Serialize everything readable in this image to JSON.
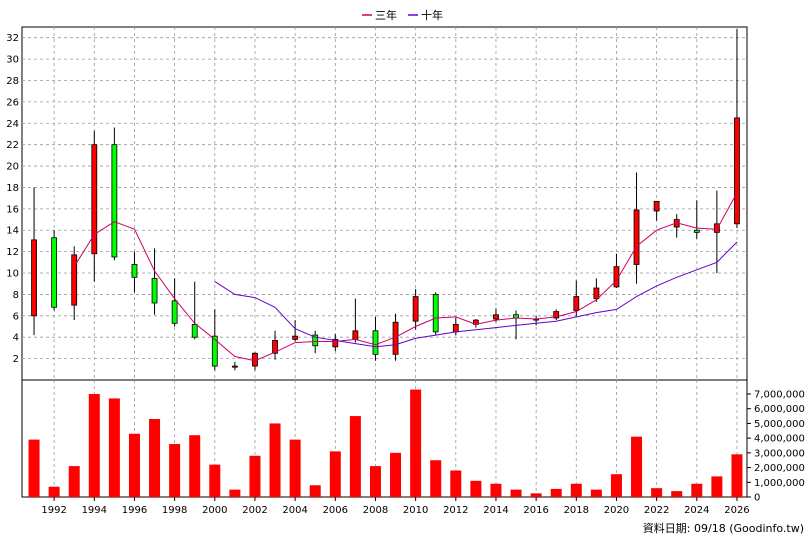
{
  "legend": [
    {
      "label": "三年",
      "color": "#cc0066"
    },
    {
      "label": "十年",
      "color": "#6600cc"
    }
  ],
  "footer": "資料日期: 09/18 (Goodinfo.tw)",
  "colors": {
    "up": "#ff0000",
    "down": "#00ff00",
    "volume": "#ff0000",
    "grid": "#999999"
  },
  "chart_data": [
    {
      "type": "candlestick",
      "ylim": [
        0,
        33
      ],
      "yticks": [
        2,
        4,
        6,
        8,
        10,
        12,
        14,
        16,
        18,
        20,
        22,
        24,
        26,
        28,
        30,
        32
      ],
      "xticks": [
        1992,
        1994,
        1996,
        1998,
        2000,
        2002,
        2004,
        2006,
        2008,
        2010,
        2012,
        2014,
        2016,
        2018,
        2020,
        2022,
        2024,
        2026
      ],
      "xlim": [
        1990.4,
        2026.5
      ],
      "candles": [
        {
          "year": 1991,
          "open": 6.0,
          "high": 18.0,
          "low": 4.2,
          "close": 13.1
        },
        {
          "year": 1992,
          "open": 13.3,
          "high": 14.0,
          "low": 6.5,
          "close": 6.8
        },
        {
          "year": 1993,
          "open": 7.0,
          "high": 12.5,
          "low": 5.6,
          "close": 11.7
        },
        {
          "year": 1994,
          "open": 11.8,
          "high": 23.3,
          "low": 9.2,
          "close": 22.0
        },
        {
          "year": 1995,
          "open": 22.0,
          "high": 23.6,
          "low": 11.2,
          "close": 11.5
        },
        {
          "year": 1996,
          "open": 10.8,
          "high": 12.0,
          "low": 8.2,
          "close": 9.6
        },
        {
          "year": 1997,
          "open": 9.5,
          "high": 12.3,
          "low": 6.1,
          "close": 7.2
        },
        {
          "year": 1998,
          "open": 7.4,
          "high": 9.5,
          "low": 5.0,
          "close": 5.3
        },
        {
          "year": 1999,
          "open": 5.2,
          "high": 9.2,
          "low": 3.8,
          "close": 4.0
        },
        {
          "year": 2000,
          "open": 4.1,
          "high": 6.6,
          "low": 0.9,
          "close": 1.3
        },
        {
          "year": 2001,
          "open": 1.2,
          "high": 1.7,
          "low": 0.9,
          "close": 1.3
        },
        {
          "year": 2002,
          "open": 1.3,
          "high": 2.6,
          "low": 0.9,
          "close": 2.5
        },
        {
          "year": 2003,
          "open": 2.5,
          "high": 4.6,
          "low": 1.9,
          "close": 3.7
        },
        {
          "year": 2004,
          "open": 3.8,
          "high": 5.6,
          "low": 3.6,
          "close": 4.1
        },
        {
          "year": 2005,
          "open": 4.2,
          "high": 4.6,
          "low": 2.5,
          "close": 3.2
        },
        {
          "year": 2006,
          "open": 3.1,
          "high": 4.3,
          "low": 2.7,
          "close": 3.8
        },
        {
          "year": 2007,
          "open": 3.8,
          "high": 7.6,
          "low": 3.5,
          "close": 4.6
        },
        {
          "year": 2008,
          "open": 4.6,
          "high": 5.9,
          "low": 1.8,
          "close": 2.4
        },
        {
          "year": 2009,
          "open": 2.4,
          "high": 6.2,
          "low": 1.8,
          "close": 5.4
        },
        {
          "year": 2010,
          "open": 5.5,
          "high": 8.5,
          "low": 4.7,
          "close": 7.8
        },
        {
          "year": 2011,
          "open": 8.0,
          "high": 8.2,
          "low": 4.2,
          "close": 4.5
        },
        {
          "year": 2012,
          "open": 4.5,
          "high": 5.8,
          "low": 4.2,
          "close": 5.2
        },
        {
          "year": 2013,
          "open": 5.2,
          "high": 5.7,
          "low": 4.9,
          "close": 5.6
        },
        {
          "year": 2014,
          "open": 5.7,
          "high": 6.7,
          "low": 5.4,
          "close": 6.1
        },
        {
          "year": 2015,
          "open": 6.1,
          "high": 6.5,
          "low": 3.8,
          "close": 5.8
        },
        {
          "year": 2016,
          "open": 5.6,
          "high": 6.0,
          "low": 5.1,
          "close": 5.7
        },
        {
          "year": 2017,
          "open": 5.8,
          "high": 6.6,
          "low": 5.6,
          "close": 6.4
        },
        {
          "year": 2018,
          "open": 6.5,
          "high": 9.3,
          "low": 6.0,
          "close": 7.8
        },
        {
          "year": 2019,
          "open": 7.6,
          "high": 9.5,
          "low": 7.3,
          "close": 8.6
        },
        {
          "year": 2020,
          "open": 8.7,
          "high": 11.8,
          "low": 8.6,
          "close": 10.6
        },
        {
          "year": 2021,
          "open": 10.8,
          "high": 19.4,
          "low": 9.0,
          "close": 15.9
        },
        {
          "year": 2022,
          "open": 15.8,
          "high": 16.7,
          "low": 14.9,
          "close": 16.7
        },
        {
          "year": 2023,
          "open": 14.3,
          "high": 15.5,
          "low": 13.3,
          "close": 15.0
        },
        {
          "year": 2024,
          "open": 14.0,
          "high": 16.8,
          "low": 13.2,
          "close": 13.8
        },
        {
          "year": 2025,
          "open": 13.8,
          "high": 17.7,
          "low": 10.0,
          "close": 14.6
        },
        {
          "year": 2026,
          "open": 14.6,
          "high": 32.8,
          "low": 14.2,
          "close": 24.5
        }
      ],
      "series": [
        {
          "name": "三年",
          "color": "#cc0066",
          "points": [
            [
              1993,
              10.6
            ],
            [
              1994,
              13.6
            ],
            [
              1995,
              14.8
            ],
            [
              1996,
              14.1
            ],
            [
              1997,
              10.2
            ],
            [
              1998,
              7.6
            ],
            [
              1999,
              5.3
            ],
            [
              2000,
              3.8
            ],
            [
              2001,
              2.2
            ],
            [
              2002,
              1.8
            ],
            [
              2003,
              2.6
            ],
            [
              2004,
              3.5
            ],
            [
              2005,
              3.6
            ],
            [
              2006,
              3.6
            ],
            [
              2007,
              3.8
            ],
            [
              2008,
              3.3
            ],
            [
              2009,
              4.0
            ],
            [
              2010,
              5.0
            ],
            [
              2011,
              5.8
            ],
            [
              2012,
              5.9
            ],
            [
              2013,
              5.2
            ],
            [
              2014,
              5.6
            ],
            [
              2015,
              5.8
            ],
            [
              2016,
              5.7
            ],
            [
              2017,
              5.9
            ],
            [
              2018,
              6.4
            ],
            [
              2019,
              7.5
            ],
            [
              2020,
              9.3
            ],
            [
              2021,
              12.5
            ],
            [
              2022,
              14.0
            ],
            [
              2023,
              14.7
            ],
            [
              2024,
              14.2
            ],
            [
              2025,
              14.1
            ],
            [
              2026,
              17.5
            ]
          ]
        },
        {
          "name": "十年",
          "color": "#6600cc",
          "points": [
            [
              2000,
              9.2
            ],
            [
              2001,
              8.0
            ],
            [
              2002,
              7.7
            ],
            [
              2003,
              6.8
            ],
            [
              2004,
              4.8
            ],
            [
              2005,
              4.0
            ],
            [
              2006,
              3.7
            ],
            [
              2007,
              3.4
            ],
            [
              2008,
              3.1
            ],
            [
              2009,
              3.3
            ],
            [
              2010,
              3.9
            ],
            [
              2011,
              4.2
            ],
            [
              2012,
              4.5
            ],
            [
              2013,
              4.7
            ],
            [
              2014,
              4.9
            ],
            [
              2015,
              5.1
            ],
            [
              2016,
              5.3
            ],
            [
              2017,
              5.5
            ],
            [
              2018,
              5.9
            ],
            [
              2019,
              6.3
            ],
            [
              2020,
              6.6
            ],
            [
              2021,
              7.8
            ],
            [
              2022,
              8.8
            ],
            [
              2023,
              9.6
            ],
            [
              2024,
              10.3
            ],
            [
              2025,
              11.0
            ],
            [
              2026,
              12.9
            ]
          ]
        }
      ]
    },
    {
      "type": "bar",
      "ylim": [
        0,
        7000000
      ],
      "yticks": [
        0,
        1000000,
        2000000,
        3000000,
        4000000,
        5000000,
        6000000,
        7000000
      ],
      "ytick_labels": [
        "0",
        "1,000,000",
        "2,000,000",
        "3,000,000",
        "4,000,000",
        "5,000,000",
        "6,000,000",
        "7,000,000"
      ],
      "x": [
        1991,
        1992,
        1993,
        1994,
        1995,
        1996,
        1997,
        1998,
        1999,
        2000,
        2001,
        2002,
        2003,
        2004,
        2005,
        2006,
        2007,
        2008,
        2009,
        2010,
        2011,
        2012,
        2013,
        2014,
        2015,
        2016,
        2017,
        2018,
        2019,
        2020,
        2021,
        2022,
        2023,
        2024,
        2025,
        2026
      ],
      "values": [
        3900000,
        700000,
        2100000,
        7000000,
        6700000,
        4300000,
        5300000,
        3600000,
        4200000,
        2200000,
        500000,
        2800000,
        5000000,
        3900000,
        800000,
        3100000,
        5500000,
        2100000,
        3000000,
        7300000,
        2500000,
        1800000,
        1100000,
        900000,
        500000,
        250000,
        550000,
        900000,
        500000,
        1550000,
        4100000,
        600000,
        400000,
        900000,
        1400000,
        2900000
      ]
    }
  ]
}
